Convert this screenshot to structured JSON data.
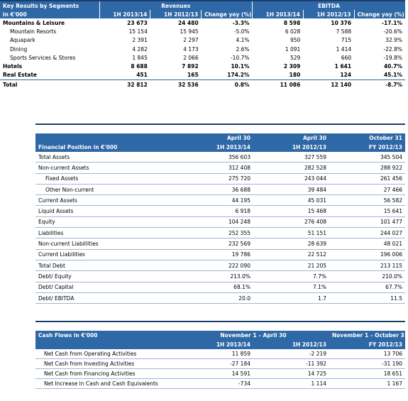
{
  "segments": {
    "title": "Key Results by Segments",
    "unit": "in €'000",
    "groups": [
      "Revenues",
      "EBITDA"
    ],
    "columns": [
      "1H 2013/14",
      "1H 2012/13",
      "Change yoy (%)",
      "1H 2013/14",
      "1H 2012/13",
      "Change yoy (%)"
    ],
    "rows": [
      {
        "label": "Mountains & Leisure",
        "style": "bold",
        "values": [
          "23 673",
          "24 480",
          "-3.3%",
          "8 598",
          "10 376",
          "-17.1%"
        ]
      },
      {
        "label": "Mountain Resorts",
        "style": "indent",
        "values": [
          "15 154",
          "15 945",
          "-5.0%",
          "6 028",
          "7 588",
          "-20.6%"
        ]
      },
      {
        "label": "Aquapark",
        "style": "indent",
        "values": [
          "2 391",
          "2 297",
          "4.1%",
          "950",
          "715",
          "32.9%"
        ]
      },
      {
        "label": "Dining",
        "style": "indent",
        "values": [
          "4 282",
          "4 173",
          "2.6%",
          "1 091",
          "1 414",
          "-22.8%"
        ]
      },
      {
        "label": "Sports Services & Stores",
        "style": "indent",
        "values": [
          "1 845",
          "2 066",
          "-10.7%",
          "529",
          "660",
          "-19.8%"
        ]
      },
      {
        "label": "Hotels",
        "style": "bold",
        "values": [
          "8 688",
          "7 892",
          "10.1%",
          "2 309",
          "1 641",
          "40.7%"
        ]
      },
      {
        "label": "Real Estate",
        "style": "bold",
        "values": [
          "451",
          "165",
          "174.2%",
          "180",
          "124",
          "45.1%"
        ]
      },
      {
        "label": "Total",
        "style": "bold",
        "values": [
          "32 812",
          "32 536",
          "0.8%",
          "11 086",
          "12 140",
          "-8.7%"
        ]
      }
    ]
  },
  "financial": {
    "title": "Financial Position in €'000",
    "dates": [
      "April 30",
      "April 30",
      "October 31"
    ],
    "columns": [
      "1H 2013/14",
      "1H 2012/13",
      "FY 2012/13"
    ],
    "rows": [
      {
        "label": "Total Assets",
        "values": [
          "356 603",
          "327 559",
          "345 504"
        ]
      },
      {
        "label": "Non-current Assets",
        "values": [
          "312 408",
          "282 528",
          "288 922"
        ]
      },
      {
        "label": "Fixed Assets",
        "style": "indent",
        "values": [
          "275 720",
          "243 044",
          "261 456"
        ]
      },
      {
        "label": "Other Non-current",
        "style": "indent",
        "values": [
          "36 688",
          "39 484",
          "27 466"
        ]
      },
      {
        "label": "Current Assets",
        "values": [
          "44 195",
          "45 031",
          "56 582"
        ]
      },
      {
        "label": "Liquid Assets",
        "values": [
          "6 918",
          "15 468",
          "15 641"
        ]
      },
      {
        "label": "Equity",
        "values": [
          "104 248",
          "276 408",
          "101 477"
        ]
      },
      {
        "label": "Liabilities",
        "values": [
          "252 355",
          "51 151",
          "244 027"
        ]
      },
      {
        "label": "Non-current Liabillities",
        "values": [
          "232 569",
          "28 639",
          "48 021"
        ]
      },
      {
        "label": "Current Liabilities",
        "values": [
          "19 786",
          "22 512",
          "196 006"
        ]
      },
      {
        "label": "Total Debt",
        "values": [
          "222 090",
          "21 205",
          "213 115"
        ]
      },
      {
        "label": "Debt/ Equity",
        "values": [
          "213.0%",
          "7.7%",
          "210.0%"
        ]
      },
      {
        "label": "Debt/ Capital",
        "values": [
          "68.1%",
          "7.1%",
          "67.7%"
        ]
      },
      {
        "label": "Debt/ EBITDA",
        "values": [
          "20.0",
          "1.7",
          "11.5"
        ]
      }
    ]
  },
  "cashflows": {
    "title": "Cash Flows in €'000",
    "periods": [
      "November 1 – April 30",
      "November 1 – October 31"
    ],
    "columns": [
      "1H 2013/14",
      "1H 2012/13",
      "FY 2012/13"
    ],
    "rows": [
      {
        "label": "Net Cash from Operating Activities",
        "values": [
          "11 859",
          "-2 219",
          "13 706"
        ]
      },
      {
        "label": "Net Cash from Investing Activities",
        "values": [
          "-27 184",
          "-11 392",
          "-31 190"
        ]
      },
      {
        "label": "Net Cash from Financing Activities",
        "values": [
          "14 591",
          "14 725",
          "18 651"
        ]
      },
      {
        "label": "Net Increase in Cash and Cash Equivalents",
        "values": [
          "-734",
          "1 114",
          "1 167"
        ]
      }
    ]
  }
}
